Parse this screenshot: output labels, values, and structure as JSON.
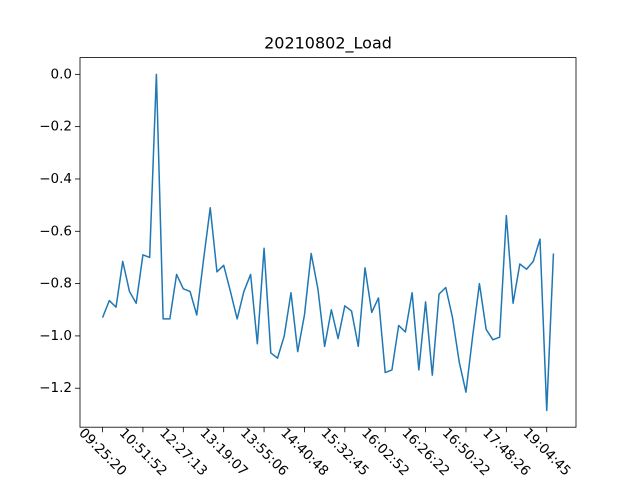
{
  "chart_data": {
    "type": "line",
    "title": "20210802_Load",
    "categories": [
      "09:25:20",
      null,
      null,
      null,
      null,
      null,
      "10:51:52",
      null,
      null,
      null,
      null,
      null,
      "12:27:13",
      null,
      null,
      null,
      null,
      null,
      "13:19:07",
      null,
      null,
      null,
      null,
      null,
      "13:55:06",
      null,
      null,
      null,
      null,
      null,
      "14:40:48",
      null,
      null,
      null,
      null,
      null,
      "15:32:45",
      null,
      null,
      null,
      null,
      null,
      "16:02:52",
      null,
      null,
      null,
      null,
      null,
      "16:26:22",
      null,
      null,
      null,
      null,
      null,
      "16:50:22",
      null,
      null,
      null,
      null,
      null,
      "17:48:26",
      null,
      null,
      null,
      null,
      null,
      "19:04:45",
      null
    ],
    "series": [
      {
        "color": "#1f77b4",
        "values": [
          -0.93,
          -0.865,
          -0.89,
          -0.715,
          -0.83,
          -0.875,
          -0.69,
          -0.7,
          0.0,
          -0.935,
          -0.935,
          -0.765,
          -0.82,
          -0.83,
          -0.92,
          -0.71,
          -0.51,
          -0.755,
          -0.73,
          -0.83,
          -0.935,
          -0.83,
          -0.765,
          -1.03,
          -0.665,
          -1.065,
          -1.085,
          -1.0,
          -0.835,
          -1.06,
          -0.92,
          -0.685,
          -0.82,
          -1.04,
          -0.9,
          -1.01,
          -0.885,
          -0.905,
          -1.04,
          -0.74,
          -0.91,
          -0.855,
          -1.14,
          -1.13,
          -0.96,
          -0.985,
          -0.835,
          -1.13,
          -0.87,
          -1.15,
          -0.84,
          -0.815,
          -0.93,
          -1.1,
          -1.215,
          -1.0,
          -0.8,
          -0.975,
          -1.015,
          -1.005,
          -0.54,
          -0.875,
          -0.725,
          -0.745,
          -0.715,
          -0.63,
          -1.285,
          -0.685
        ]
      }
    ],
    "ylim": [
      -1.349,
      0.064
    ],
    "yticks": [
      {
        "value": -1.2,
        "label": "−1.2"
      },
      {
        "value": -1.0,
        "label": "−1.0"
      },
      {
        "value": -0.8,
        "label": "−0.8"
      },
      {
        "value": -0.6,
        "label": "−0.6"
      },
      {
        "value": -0.4,
        "label": "−0.4"
      },
      {
        "value": -0.2,
        "label": "−0.2"
      },
      {
        "value": 0.0,
        "label": "0.0"
      }
    ],
    "grid": false
  }
}
